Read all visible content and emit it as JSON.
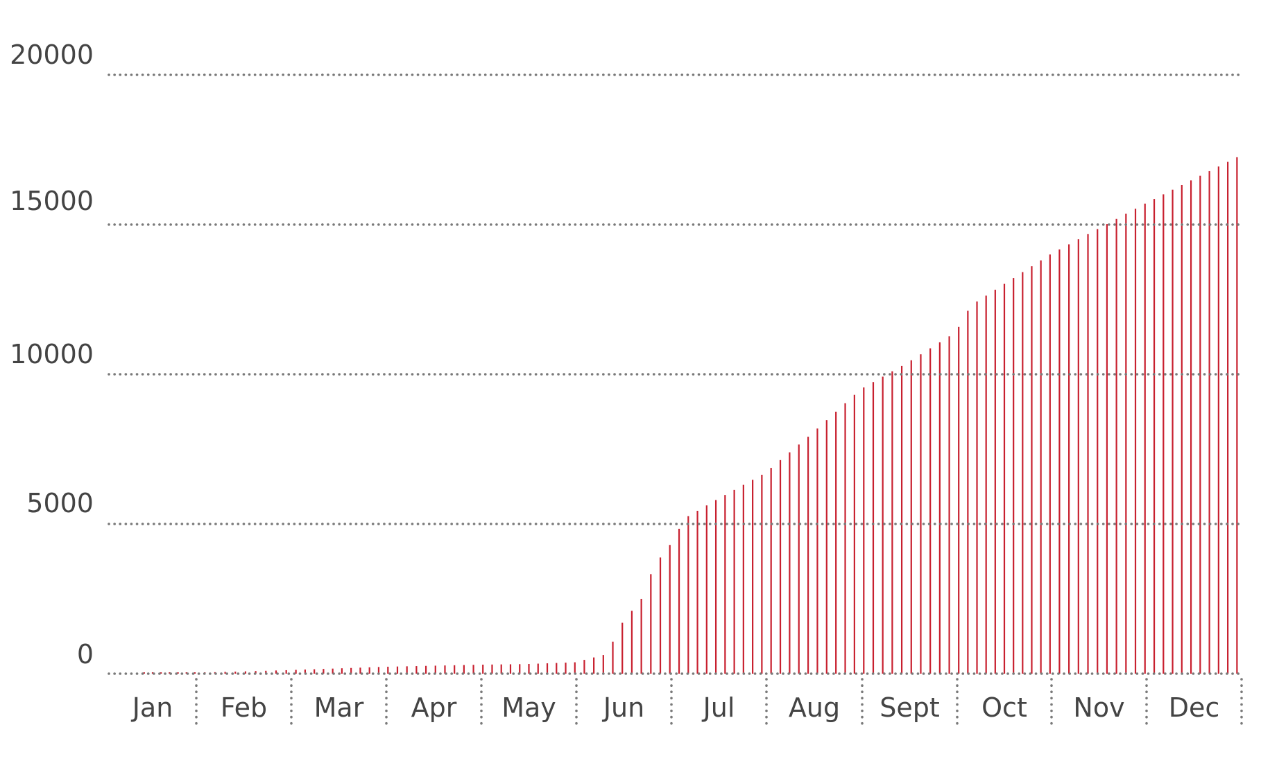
{
  "chart_data": {
    "type": "bar",
    "title": "",
    "xlabel": "",
    "ylabel": "",
    "ylim": [
      0,
      20000
    ],
    "y_ticks": [
      "20000",
      "15000",
      "10000",
      "5000",
      "0"
    ],
    "x_months": [
      "Jan",
      "Feb",
      "Mar",
      "Apr",
      "May",
      "Jun",
      "Jul",
      "Aug",
      "Sept",
      "Oct",
      "Nov",
      "Dec"
    ],
    "grid": "horizontal dotted, plus dotted vertical month separators",
    "legend": "none",
    "bar_color": "#c8202f",
    "grid_color": "#7a7a7a",
    "x_start_day": "Jan 13",
    "x_end_day": "Dec 31",
    "x_step_days": 3,
    "anchors": [
      {
        "date": "Jan 13",
        "value": 0
      },
      {
        "date": "Jan 31",
        "value": 30
      },
      {
        "date": "Feb 28",
        "value": 120
      },
      {
        "date": "Mar 31",
        "value": 230
      },
      {
        "date": "Apr 30",
        "value": 300
      },
      {
        "date": "May 15",
        "value": 320
      },
      {
        "date": "May 31",
        "value": 380
      },
      {
        "date": "Jun 10",
        "value": 650
      },
      {
        "date": "Jun 15",
        "value": 1700
      },
      {
        "date": "Jun 21",
        "value": 2500
      },
      {
        "date": "Jun 25",
        "value": 3600
      },
      {
        "date": "Jun 30",
        "value": 4300
      },
      {
        "date": "Jul 5",
        "value": 5200
      },
      {
        "date": "Jul 15",
        "value": 5800
      },
      {
        "date": "Jul 31",
        "value": 6700
      },
      {
        "date": "Aug 15",
        "value": 8000
      },
      {
        "date": "Aug 31",
        "value": 9500
      },
      {
        "date": "Sept 15",
        "value": 10400
      },
      {
        "date": "Sept 30",
        "value": 11400
      },
      {
        "date": "Oct 5",
        "value": 12300
      },
      {
        "date": "Oct 31",
        "value": 14000
      },
      {
        "date": "Nov 30",
        "value": 15700
      },
      {
        "date": "Dec 31",
        "value": 17300
      }
    ]
  }
}
